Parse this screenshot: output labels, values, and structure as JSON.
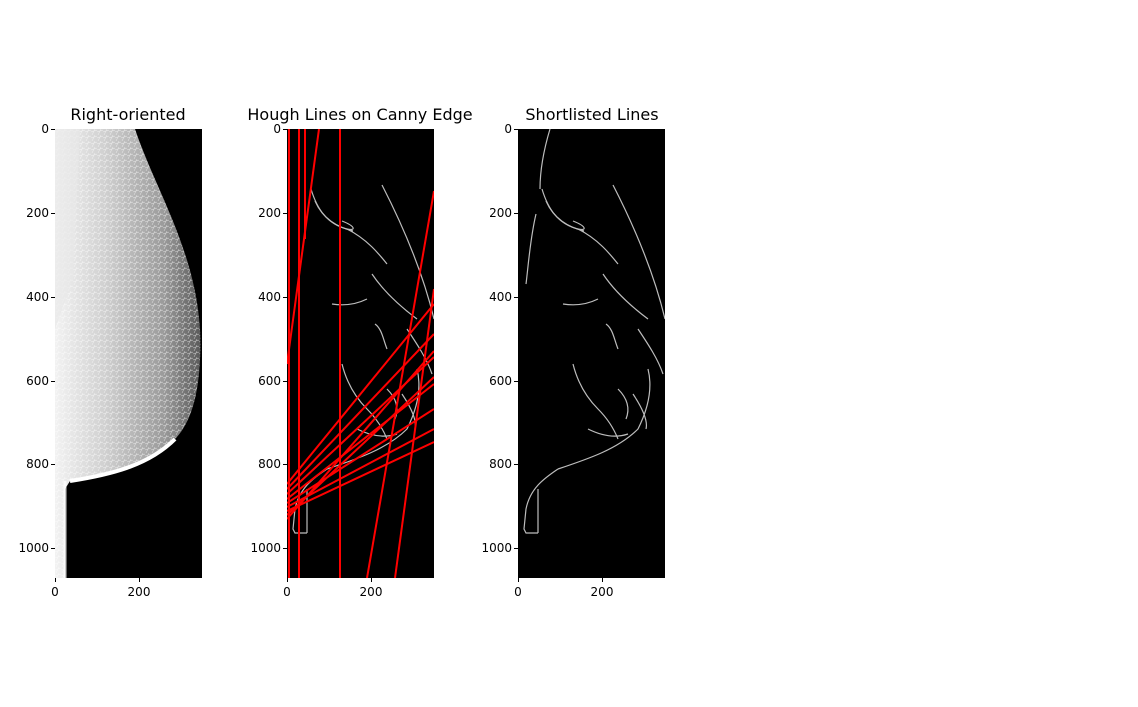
{
  "panels": [
    {
      "title": "Right-oriented",
      "y_ticks": [
        "0",
        "200",
        "400",
        "600",
        "800",
        "1000"
      ],
      "x_ticks": [
        "0",
        "200"
      ]
    },
    {
      "title": "Hough Lines on Canny Edge",
      "y_ticks": [
        "0",
        "200",
        "400",
        "600",
        "800",
        "1000"
      ],
      "x_ticks": [
        "0",
        "200"
      ]
    },
    {
      "title": "Shortlisted Lines",
      "y_ticks": [
        "0",
        "200",
        "400",
        "600",
        "800",
        "1000"
      ],
      "x_ticks": [
        "0",
        "200"
      ]
    }
  ],
  "colors": {
    "background": "#ffffff",
    "image_bg": "#000000",
    "hough_line": "#ff0000",
    "edge": "#cfcfcf"
  }
}
